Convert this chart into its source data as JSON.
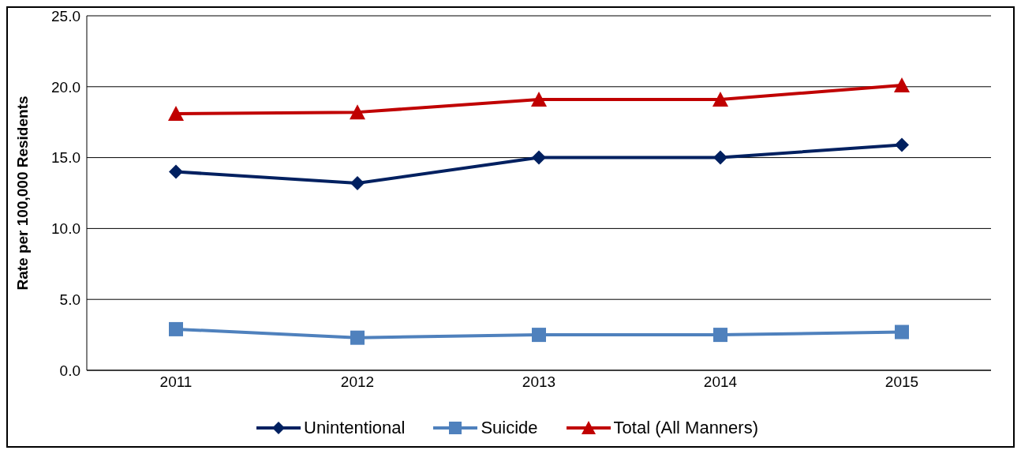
{
  "chart_data": {
    "type": "line",
    "ylabel": "Rate per 100,000 Residents",
    "categories": [
      "2011",
      "2012",
      "2013",
      "2014",
      "2015"
    ],
    "series": [
      {
        "name": "Unintentional",
        "color": "#002060",
        "marker": "diamond",
        "values": [
          14.0,
          13.2,
          15.0,
          15.0,
          15.9
        ]
      },
      {
        "name": "Suicide",
        "color": "#4f81bd",
        "marker": "square",
        "values": [
          2.9,
          2.3,
          2.5,
          2.5,
          2.7
        ]
      },
      {
        "name": "Total (All Manners)",
        "color": "#c00000",
        "marker": "triangle",
        "values": [
          18.1,
          18.2,
          19.1,
          19.1,
          20.1
        ]
      }
    ],
    "ylim": [
      0,
      25
    ],
    "yticks": [
      {
        "value": 0,
        "label": "0.0"
      },
      {
        "value": 5,
        "label": "5.0"
      },
      {
        "value": 10,
        "label": "10.0"
      },
      {
        "value": 15,
        "label": "15.0"
      },
      {
        "value": 20,
        "label": "20.0"
      },
      {
        "value": 25,
        "label": "25.0"
      }
    ],
    "grid": "y",
    "legend": "bottom",
    "line_style": "solid"
  }
}
